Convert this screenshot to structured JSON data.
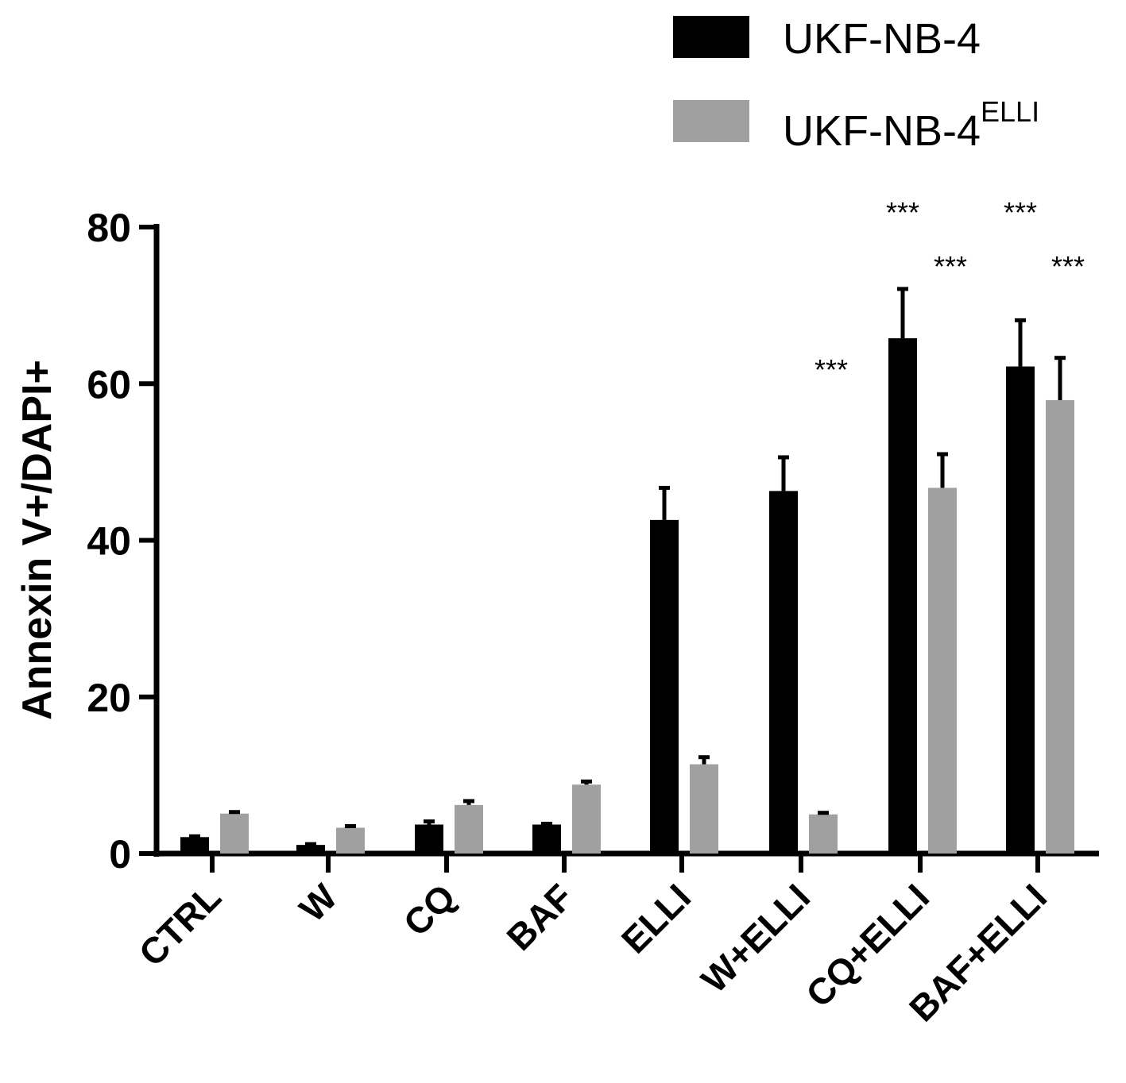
{
  "chart_data": {
    "type": "bar",
    "ylabel": "Annexin V+/DAPI+",
    "xlabel": "",
    "ylim": [
      0,
      80
    ],
    "yticks": [
      0,
      20,
      40,
      60,
      80
    ],
    "grid": false,
    "legend_placement": "top-right",
    "categories": [
      "CTRL",
      "W",
      "CQ",
      "BAF",
      "ELLI",
      "W+ELLI",
      "CQ+ELLI",
      "BAF+ELLI"
    ],
    "series": [
      {
        "name": "UKF-NB-4",
        "name_sup": "",
        "color": "#000000",
        "values": [
          2.1,
          1.1,
          3.7,
          3.7,
          42.6,
          46.3,
          65.8,
          62.2
        ],
        "errors": [
          0.1,
          0.1,
          0.4,
          0.1,
          4.1,
          4.3,
          6.3,
          5.9
        ],
        "significance": [
          "",
          "",
          "",
          "",
          "",
          "",
          "***",
          "***"
        ]
      },
      {
        "name": "UKF-NB-4",
        "name_sup": "ELLI",
        "color": "#a0a0a0",
        "values": [
          5.1,
          3.3,
          6.2,
          8.8,
          11.4,
          5.0,
          46.7,
          57.9
        ],
        "errors": [
          0.2,
          0.2,
          0.5,
          0.4,
          0.9,
          0.2,
          4.3,
          5.4
        ],
        "significance": [
          "",
          "",
          "",
          "",
          "",
          "***",
          "***",
          "***"
        ]
      }
    ]
  }
}
